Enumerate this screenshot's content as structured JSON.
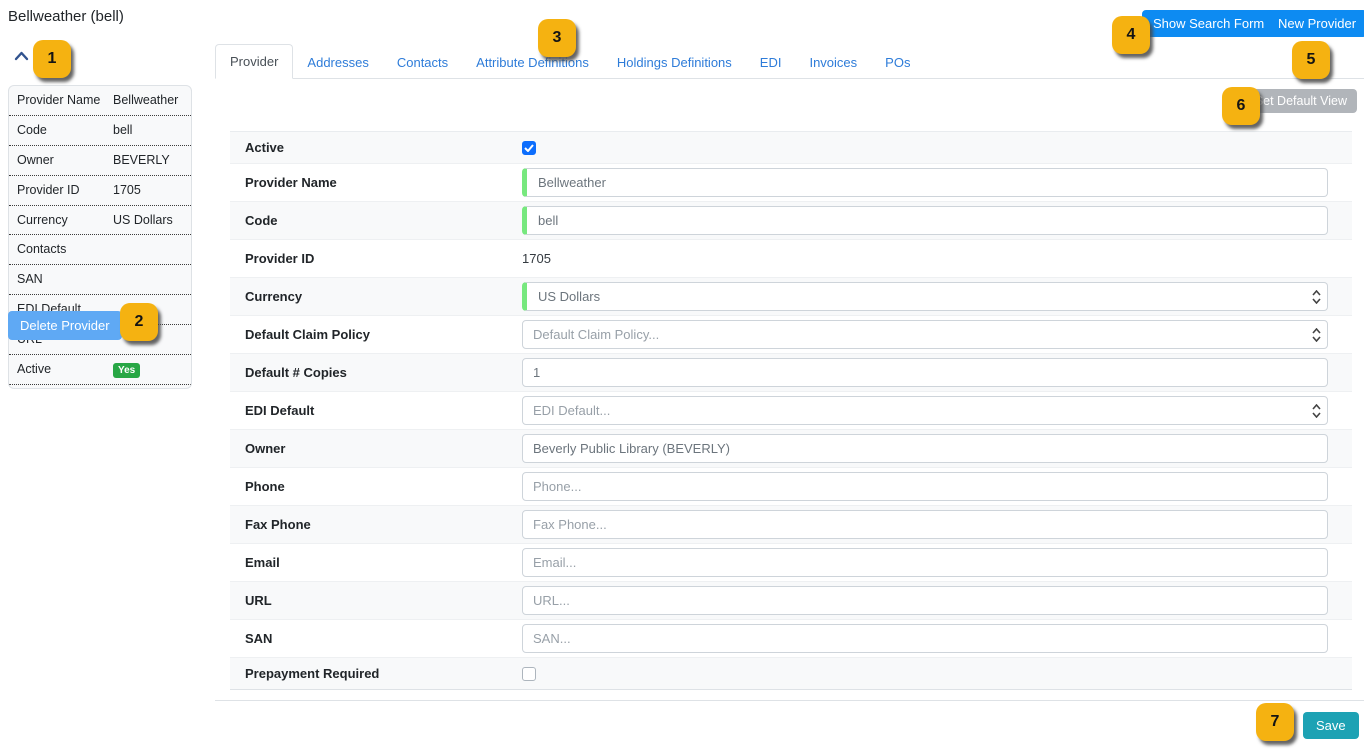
{
  "page": {
    "title": "Bellweather (bell)"
  },
  "header": {
    "show_search_form": "Show Search Form",
    "new_provider": "New Provider"
  },
  "sidebar": {
    "summary_rows": [
      {
        "label": "Provider Name",
        "value": "Bellweather"
      },
      {
        "label": "Code",
        "value": "bell"
      },
      {
        "label": "Owner",
        "value": "BEVERLY"
      },
      {
        "label": "Provider ID",
        "value": "1705"
      },
      {
        "label": "Currency",
        "value": "US Dollars"
      },
      {
        "label": "Contacts",
        "value": ""
      },
      {
        "label": "SAN",
        "value": ""
      },
      {
        "label": "EDI Default",
        "value": ""
      },
      {
        "label": "URL",
        "value": ""
      },
      {
        "label": "Active",
        "value": "Yes",
        "badge": true
      }
    ],
    "delete_button": "Delete Provider"
  },
  "tabs": [
    {
      "label": "Provider",
      "active": true
    },
    {
      "label": "Addresses"
    },
    {
      "label": "Contacts"
    },
    {
      "label": "Attribute Definitions"
    },
    {
      "label": "Holdings Definitions"
    },
    {
      "label": "EDI"
    },
    {
      "label": "Invoices"
    },
    {
      "label": "POs"
    }
  ],
  "toolbar": {
    "set_default_view": "Set Default View"
  },
  "form": {
    "rows": [
      {
        "label": "Active",
        "type": "checkbox",
        "checked": true
      },
      {
        "label": "Provider Name",
        "type": "input",
        "value": "Bellweather",
        "valid": true
      },
      {
        "label": "Code",
        "type": "input",
        "value": "bell",
        "valid": true
      },
      {
        "label": "Provider ID",
        "type": "static",
        "value": "1705"
      },
      {
        "label": "Currency",
        "type": "combobox",
        "value": "US Dollars",
        "valid": true
      },
      {
        "label": "Default Claim Policy",
        "type": "combobox",
        "placeholder": "Default Claim Policy..."
      },
      {
        "label": "Default # Copies",
        "type": "input",
        "value": "1"
      },
      {
        "label": "EDI Default",
        "type": "combobox",
        "placeholder": "EDI Default..."
      },
      {
        "label": "Owner",
        "type": "input",
        "value": "Beverly Public Library (BEVERLY)"
      },
      {
        "label": "Phone",
        "type": "input",
        "placeholder": "Phone..."
      },
      {
        "label": "Fax Phone",
        "type": "input",
        "placeholder": "Fax Phone..."
      },
      {
        "label": "Email",
        "type": "input",
        "placeholder": "Email..."
      },
      {
        "label": "URL",
        "type": "input",
        "placeholder": "URL..."
      },
      {
        "label": "SAN",
        "type": "input",
        "placeholder": "SAN..."
      },
      {
        "label": "Prepayment Required",
        "type": "checkbox",
        "checked": false
      }
    ],
    "save_button": "Save"
  },
  "callouts": [
    "1",
    "2",
    "3",
    "4",
    "5",
    "6",
    "7"
  ],
  "colors": {
    "primary_blue": "#0d8bf2",
    "delete_light_blue": "#5fa9f4",
    "save_teal": "#1da2b4",
    "set_default_gray": "#b1b5ba",
    "callout_yellow": "#f5b211",
    "active_yes_green": "#28a745",
    "valid_field_green": "#77e87e",
    "tab_link_blue": "#2e7cd9",
    "checkbox_blue": "#0d6efd"
  }
}
